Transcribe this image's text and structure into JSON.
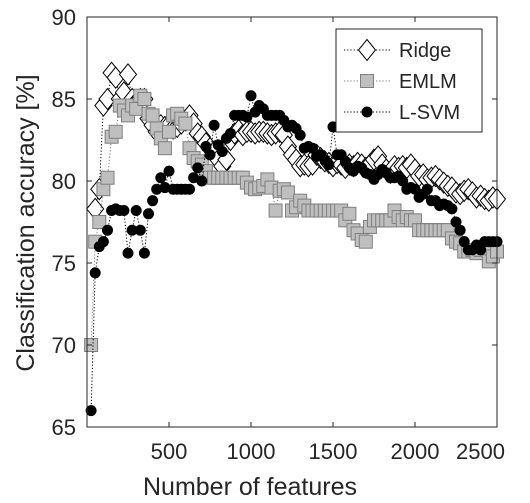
{
  "chart_data": {
    "type": "scatter",
    "title": "",
    "xlabel": "Number of features",
    "ylabel": "Classification accuracy [%]",
    "xlim": [
      0,
      2500
    ],
    "ylim": [
      65,
      90
    ],
    "xticks": [
      500,
      1000,
      1500,
      2000,
      2500
    ],
    "yticks": [
      65,
      70,
      75,
      80,
      85,
      90
    ],
    "xtick_labels": [
      "500",
      "1000",
      "1500",
      "2000",
      "2500"
    ],
    "ytick_labels": [
      "65",
      "70",
      "75",
      "80",
      "85",
      "90"
    ],
    "grid": false,
    "legend": "top-right",
    "series": [
      {
        "name": "Ridge",
        "marker": "diamond",
        "color": "#000000",
        "fill": "#ffffff",
        "x": [
          50,
          75,
          100,
          125,
          150,
          175,
          200,
          225,
          250,
          275,
          300,
          325,
          350,
          375,
          400,
          425,
          450,
          475,
          500,
          525,
          550,
          575,
          600,
          625,
          650,
          675,
          700,
          725,
          750,
          775,
          800,
          825,
          850,
          875,
          900,
          925,
          950,
          975,
          1000,
          1025,
          1050,
          1075,
          1100,
          1125,
          1150,
          1175,
          1200,
          1225,
          1250,
          1275,
          1300,
          1325,
          1350,
          1375,
          1400,
          1425,
          1450,
          1475,
          1500,
          1525,
          1550,
          1575,
          1600,
          1625,
          1650,
          1675,
          1700,
          1725,
          1750,
          1775,
          1800,
          1825,
          1850,
          1875,
          1900,
          1925,
          1950,
          1975,
          2000,
          2025,
          2050,
          2075,
          2100,
          2125,
          2150,
          2175,
          2200,
          2225,
          2250,
          2275,
          2300,
          2325,
          2350,
          2375,
          2400,
          2425,
          2450,
          2475,
          2500
        ],
        "y": [
          78.3,
          79.5,
          84.6,
          85.0,
          86.6,
          86.3,
          85.0,
          85.4,
          86.5,
          85.0,
          84.8,
          85.0,
          85.0,
          83.8,
          83.4,
          83.0,
          83.4,
          83.3,
          83.4,
          83.2,
          83.3,
          83.5,
          83.7,
          84.0,
          83.5,
          82.9,
          82.7,
          82.3,
          82.0,
          81.8,
          81.3,
          80.9,
          81.3,
          82.5,
          82.9,
          83.1,
          82.8,
          83.0,
          83.0,
          82.9,
          83.0,
          83.0,
          82.9,
          82.8,
          82.9,
          83.0,
          82.8,
          82.1,
          81.6,
          81.3,
          80.9,
          81.0,
          80.9,
          81.0,
          81.6,
          81.4,
          81.2,
          81.1,
          80.9,
          81.1,
          81.0,
          80.8,
          81.0,
          80.9,
          81.1,
          81.0,
          80.8,
          81.0,
          81.3,
          81.5,
          81.0,
          80.7,
          80.5,
          80.9,
          80.8,
          80.9,
          80.8,
          81.0,
          80.7,
          80.3,
          80.4,
          80.1,
          80.2,
          80.3,
          80.1,
          79.9,
          79.7,
          79.6,
          79.3,
          79.2,
          79.4,
          79.5,
          79.3,
          79.0,
          79.1,
          78.9,
          78.8,
          79.0,
          78.9
        ]
      },
      {
        "name": "EMLM",
        "marker": "square",
        "color": "#7f7f7f",
        "fill": "#bfbfbf",
        "x": [
          25,
          50,
          75,
          100,
          125,
          150,
          175,
          200,
          225,
          250,
          275,
          300,
          325,
          350,
          375,
          400,
          425,
          450,
          475,
          500,
          525,
          550,
          575,
          600,
          625,
          650,
          675,
          700,
          725,
          750,
          775,
          800,
          825,
          850,
          875,
          900,
          925,
          950,
          975,
          1000,
          1025,
          1050,
          1075,
          1100,
          1125,
          1150,
          1175,
          1200,
          1225,
          1250,
          1275,
          1300,
          1325,
          1350,
          1375,
          1400,
          1425,
          1450,
          1475,
          1500,
          1525,
          1550,
          1575,
          1600,
          1625,
          1650,
          1675,
          1700,
          1725,
          1750,
          1775,
          1800,
          1825,
          1850,
          1875,
          1900,
          1925,
          1950,
          1975,
          2000,
          2025,
          2050,
          2075,
          2100,
          2125,
          2150,
          2175,
          2200,
          2225,
          2250,
          2275,
          2300,
          2325,
          2350,
          2375,
          2400,
          2425,
          2450,
          2475,
          2500
        ],
        "y": [
          70.0,
          76.3,
          77.5,
          79.5,
          80.2,
          82.7,
          83.0,
          84.6,
          84.3,
          84.0,
          84.6,
          84.4,
          85.2,
          85.0,
          84.1,
          84.0,
          83.2,
          82.6,
          82.0,
          83.0,
          84.0,
          84.1,
          83.8,
          83.5,
          82.0,
          81.4,
          81.2,
          81.0,
          80.6,
          80.2,
          80.2,
          80.2,
          80.2,
          80.2,
          80.2,
          80.2,
          80.2,
          80.2,
          79.9,
          79.6,
          79.5,
          79.6,
          79.7,
          80.1,
          79.6,
          78.2,
          79.4,
          79.5,
          79.3,
          78.2,
          78.4,
          78.8,
          78.5,
          78.2,
          78.2,
          78.2,
          78.2,
          78.2,
          78.2,
          78.2,
          78.2,
          78.2,
          77.6,
          78.0,
          77.0,
          76.8,
          76.4,
          76.3,
          77.2,
          77.6,
          77.6,
          77.6,
          77.6,
          77.6,
          78.2,
          77.8,
          77.6,
          77.8,
          77.6,
          77.6,
          77.0,
          77.0,
          77.0,
          77.0,
          77.0,
          77.0,
          77.0,
          77.0,
          76.5,
          76.3,
          76.2,
          75.7,
          75.7,
          75.8,
          75.6,
          75.8,
          75.9,
          75.1,
          75.4,
          75.7
        ]
      },
      {
        "name": "L-SVM",
        "marker": "circle",
        "color": "#000000",
        "fill": "#000000",
        "x": [
          25,
          50,
          75,
          100,
          125,
          150,
          175,
          200,
          225,
          250,
          275,
          300,
          325,
          350,
          375,
          400,
          425,
          450,
          475,
          500,
          525,
          550,
          575,
          600,
          625,
          650,
          675,
          700,
          725,
          750,
          775,
          800,
          825,
          850,
          875,
          900,
          925,
          950,
          975,
          1000,
          1025,
          1050,
          1075,
          1100,
          1125,
          1150,
          1175,
          1200,
          1225,
          1250,
          1275,
          1300,
          1325,
          1350,
          1375,
          1400,
          1425,
          1450,
          1475,
          1500,
          1525,
          1550,
          1575,
          1600,
          1625,
          1650,
          1675,
          1700,
          1725,
          1750,
          1775,
          1800,
          1825,
          1850,
          1875,
          1900,
          1925,
          1950,
          1975,
          2000,
          2025,
          2050,
          2075,
          2100,
          2125,
          2150,
          2175,
          2200,
          2225,
          2250,
          2275,
          2300,
          2325,
          2350,
          2375,
          2400,
          2425,
          2450,
          2475,
          2500
        ],
        "y": [
          66.0,
          74.4,
          76.0,
          76.3,
          77.0,
          78.2,
          78.3,
          78.2,
          78.2,
          75.6,
          77.0,
          78.2,
          77.0,
          75.6,
          78.0,
          78.8,
          79.5,
          80.2,
          79.6,
          80.6,
          79.5,
          79.5,
          79.5,
          79.5,
          79.5,
          80.2,
          80.8,
          80.0,
          82.1,
          81.6,
          83.4,
          82.2,
          81.8,
          82.6,
          82.9,
          84.0,
          84.0,
          84.0,
          83.9,
          85.2,
          84.2,
          84.6,
          84.4,
          84.0,
          84.0,
          84.0,
          84.0,
          83.7,
          83.3,
          83.4,
          83.2,
          82.8,
          82.0,
          82.1,
          82.0,
          81.5,
          81.6,
          81.3,
          81.0,
          83.3,
          81.6,
          81.6,
          81.2,
          80.8,
          80.6,
          80.9,
          80.8,
          80.5,
          80.4,
          80.1,
          80.4,
          80.7,
          80.5,
          80.2,
          80.2,
          80.3,
          80.0,
          79.5,
          79.6,
          79.5,
          79.0,
          79.2,
          79.5,
          78.8,
          78.8,
          78.5,
          78.6,
          78.5,
          78.3,
          77.5,
          77.0,
          76.3,
          75.8,
          75.8,
          76.1,
          75.8,
          76.3,
          76.3,
          76.3,
          76.3
        ]
      }
    ]
  }
}
